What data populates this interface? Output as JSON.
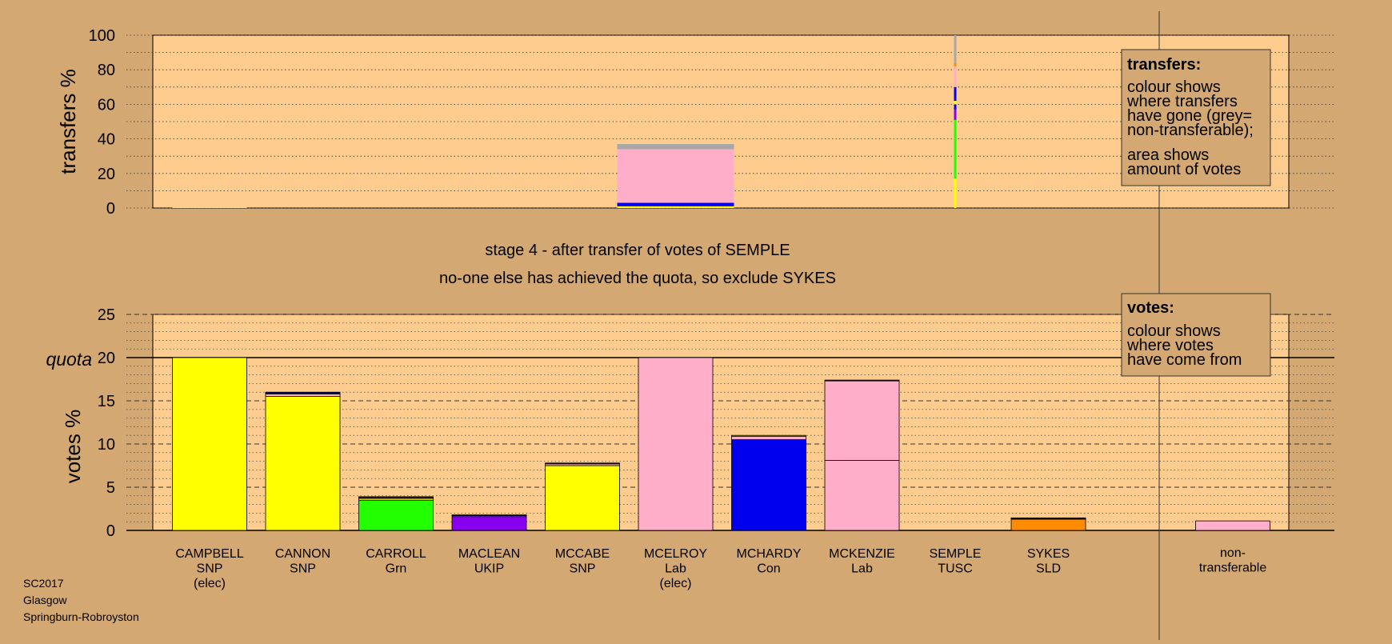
{
  "colors": {
    "background": "#d4a872",
    "panel": "#ffcc8f",
    "yellow": "#ffff00",
    "green": "#22ff00",
    "purple": "#8800ee",
    "pink": "#ffaec9",
    "blue": "#0000ee",
    "orange": "#ff8c00",
    "grey": "#a8a8a8",
    "line": "#000000"
  },
  "stage_text": {
    "line1": "stage 4 - after transfer of votes of SEMPLE",
    "line2": "no-one else has achieved the quota, so exclude SYKES"
  },
  "footer": {
    "election": "SC2017",
    "council": "Glasgow",
    "ward": "Springburn-Robroyston"
  },
  "transfers_legend": {
    "title": "transfers:",
    "para1": [
      "colour shows",
      "where transfers",
      "have gone (grey=",
      "non-transferable);"
    ],
    "para2": [
      "area shows",
      "amount of votes"
    ]
  },
  "votes_legend": {
    "title": "votes:",
    "para1": [
      "colour shows",
      "where votes",
      "have come from"
    ]
  },
  "chart_data": [
    {
      "type": "bar",
      "id": "transfers",
      "ylabel": "transfers %",
      "ylim": [
        0,
        100
      ],
      "yticks": [
        0,
        20,
        40,
        60,
        80,
        100
      ],
      "grid": "dotted",
      "bars": [
        {
          "candidate": "CAMPBELL",
          "segments": [
            {
              "color": "yellow",
              "value": 0.5
            }
          ]
        },
        {
          "candidate": "MCELROY",
          "segments": [
            {
              "color": "yellow",
              "value": 1
            },
            {
              "color": "blue",
              "value": 2
            },
            {
              "color": "pink",
              "value": 31
            },
            {
              "color": "grey",
              "value": 3
            }
          ]
        },
        {
          "candidate": "SEMPLE",
          "segments": [
            {
              "color": "yellow",
              "value": 17
            },
            {
              "color": "green",
              "value": 34
            },
            {
              "color": "purple",
              "value": 6
            },
            {
              "color": "blue",
              "value": 3
            },
            {
              "color": "yellow",
              "value": 2
            },
            {
              "color": "blue",
              "value": 8
            },
            {
              "color": "pink",
              "value": 12
            },
            {
              "color": "orange",
              "value": 2
            },
            {
              "color": "grey",
              "value": 16
            }
          ]
        }
      ]
    },
    {
      "type": "bar",
      "id": "votes",
      "ylabel": "votes %",
      "quota_label": "quota",
      "quota": 20,
      "ylim": [
        0,
        25
      ],
      "yticks": [
        0,
        5,
        10,
        15,
        20,
        25
      ],
      "grid": "dashed",
      "candidates": [
        {
          "name": "CAMPBELL",
          "party": "SNP",
          "status": "(elec)",
          "segments": [
            {
              "color": "yellow",
              "value": 20
            }
          ]
        },
        {
          "name": "CANNON",
          "party": "SNP",
          "status": "",
          "segments": [
            {
              "color": "yellow",
              "value": 15.5
            },
            {
              "color": "pink",
              "value": 0.3
            },
            {
              "color": "purple",
              "value": 0.1
            },
            {
              "color": "blue",
              "value": 0.1
            }
          ]
        },
        {
          "name": "CARROLL",
          "party": "Grn",
          "status": "",
          "segments": [
            {
              "color": "green",
              "value": 3.5
            },
            {
              "color": "yellow",
              "value": 0.2
            },
            {
              "color": "pink",
              "value": 0.1
            },
            {
              "color": "blue",
              "value": 0.1
            }
          ]
        },
        {
          "name": "MACLEAN",
          "party": "UKIP",
          "status": "",
          "segments": [
            {
              "color": "purple",
              "value": 1.6
            },
            {
              "color": "pink",
              "value": 0.1
            },
            {
              "color": "blue",
              "value": 0.1
            }
          ]
        },
        {
          "name": "MCCABE",
          "party": "SNP",
          "status": "",
          "segments": [
            {
              "color": "yellow",
              "value": 7.5
            },
            {
              "color": "pink",
              "value": 0.2
            },
            {
              "color": "blue",
              "value": 0.1
            }
          ]
        },
        {
          "name": "MCELROY",
          "party": "Lab",
          "status": "(elec)",
          "segments": [
            {
              "color": "pink",
              "value": 20
            }
          ]
        },
        {
          "name": "MCHARDY",
          "party": "Con",
          "status": "",
          "segments": [
            {
              "color": "blue",
              "value": 10.5
            },
            {
              "color": "pink",
              "value": 0.4
            },
            {
              "color": "yellow",
              "value": 0.1
            }
          ]
        },
        {
          "name": "MCKENZIE",
          "party": "Lab",
          "status": "",
          "segments": [
            {
              "color": "pink",
              "value": 8.1
            },
            {
              "color": "pink",
              "value": 9.2
            },
            {
              "color": "blue",
              "value": 0.1
            }
          ]
        },
        {
          "name": "SEMPLE",
          "party": "TUSC",
          "status": "",
          "segments": []
        },
        {
          "name": "SYKES",
          "party": "SLD",
          "status": "",
          "segments": [
            {
              "color": "orange",
              "value": 1.3
            },
            {
              "color": "pink",
              "value": 0.1
            },
            {
              "color": "blue",
              "value": 0.05
            }
          ]
        }
      ],
      "nontransferable": {
        "label1": "non-",
        "label2": "transferable",
        "segments": [
          {
            "color": "pink",
            "value": 1.1
          }
        ]
      }
    }
  ]
}
